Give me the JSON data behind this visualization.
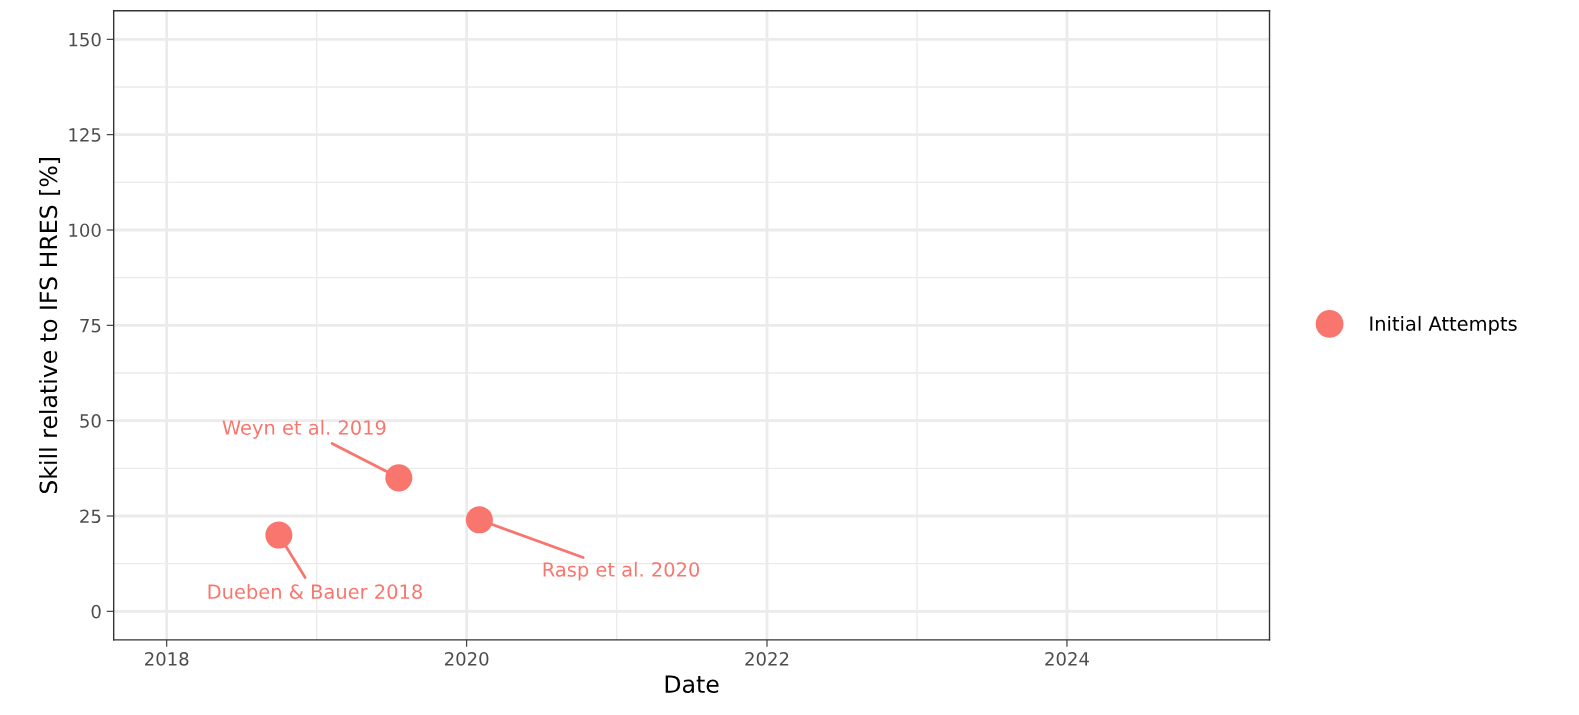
{
  "chart_data": {
    "type": "scatter",
    "xlabel": "Date",
    "ylabel": "Skill relative to IFS HRES [%]",
    "x": [
      "2018-10-01",
      "2019-07-20",
      "2020-02-01"
    ],
    "series": [
      {
        "name": "Initial Attempts",
        "color": "#f8766d",
        "values": [
          20,
          35,
          24
        ]
      }
    ],
    "annotations": [
      {
        "text": "Dueben & Bauer 2018",
        "x": "2018-10-01",
        "y": 20
      },
      {
        "text": "Weyn et al. 2019",
        "x": "2019-07-20",
        "y": 35
      },
      {
        "text": "Rasp et al. 2020",
        "x": "2020-02-01",
        "y": 24
      }
    ],
    "xlim": [
      "2017-08-25",
      "2025-05-08"
    ],
    "xticks": [
      "2018",
      "2020",
      "2022",
      "2024"
    ],
    "ylim": [
      -7.5,
      157.5
    ],
    "yticks": [
      0,
      25,
      50,
      75,
      100,
      125,
      150
    ],
    "grid": true,
    "legend": "right",
    "marker": "circle"
  }
}
